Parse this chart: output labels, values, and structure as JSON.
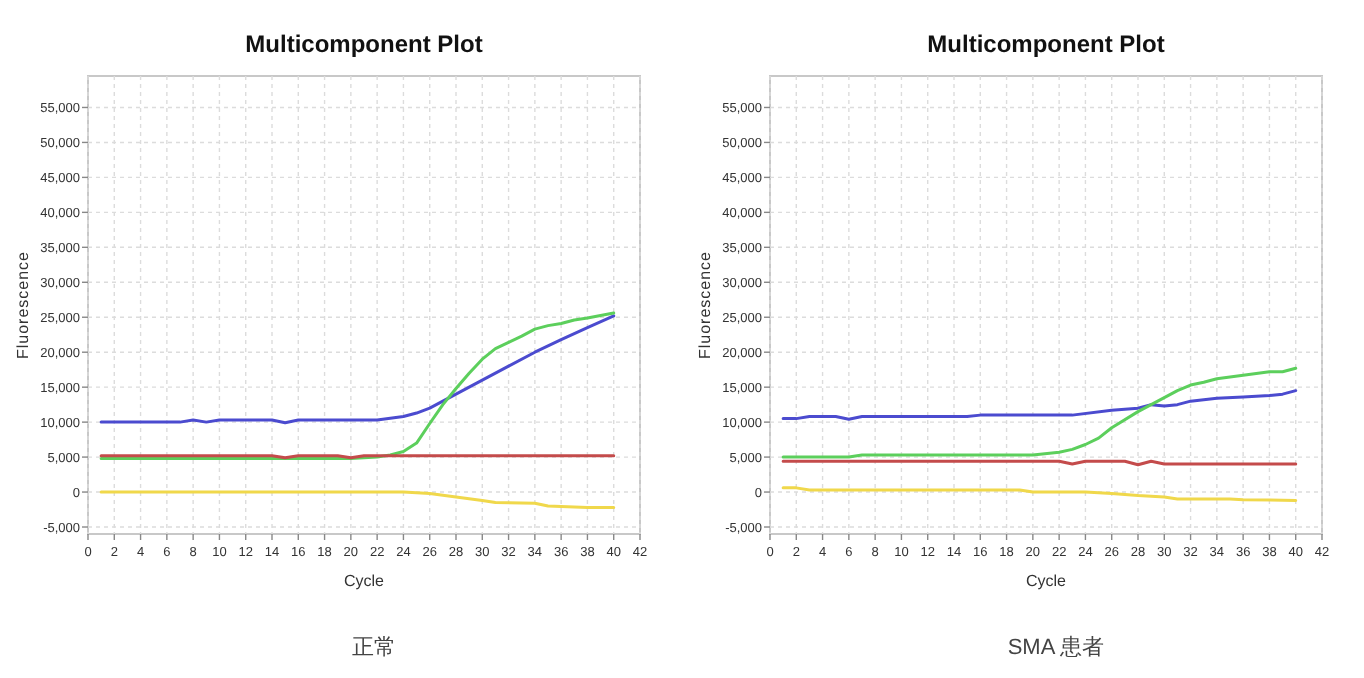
{
  "chart_data": [
    {
      "type": "line",
      "title": "Multicomponent Plot",
      "xlabel": "Cycle",
      "ylabel": "Fluorescence",
      "annotations": [
        "正常"
      ],
      "xlim": [
        0,
        42
      ],
      "ylim": [
        -6000,
        59500
      ],
      "xticks": [
        0,
        2,
        4,
        6,
        8,
        10,
        12,
        14,
        16,
        18,
        20,
        22,
        24,
        26,
        28,
        30,
        32,
        34,
        36,
        38,
        40,
        42
      ],
      "yticks": [
        {
          "value": -5000,
          "label": "-5,000"
        },
        0,
        {
          "value": 5000,
          "label": "5,000"
        },
        {
          "value": 10000,
          "label": "10,000"
        },
        {
          "value": 15000,
          "label": "15,000"
        },
        {
          "value": 20000,
          "label": "20,000"
        },
        {
          "value": 25000,
          "label": "25,000"
        },
        {
          "value": 30000,
          "label": "30,000"
        },
        {
          "value": 35000,
          "label": "35,000"
        },
        {
          "value": 40000,
          "label": "40,000"
        },
        {
          "value": 45000,
          "label": "45,000"
        },
        {
          "value": 50000,
          "label": "50,000"
        },
        {
          "value": 55000,
          "label": "55,000"
        }
      ],
      "grid": true,
      "series": [
        {
          "color": "#4b4bcf",
          "x": [
            1,
            7,
            8,
            9,
            10,
            14,
            15,
            16,
            22,
            24,
            25,
            26,
            28,
            30,
            32,
            34,
            36,
            38,
            40
          ],
          "values": [
            10000,
            10000,
            10300,
            10000,
            10300,
            10300,
            9900,
            10300,
            10300,
            10800,
            11300,
            12000,
            14000,
            16000,
            18000,
            20000,
            21800,
            23500,
            25200
          ]
        },
        {
          "color": "#5ccf5c",
          "x": [
            1,
            20,
            22,
            23,
            24,
            25,
            26,
            27,
            28,
            29,
            30,
            31,
            32,
            33,
            34,
            35,
            36,
            37,
            38,
            40
          ],
          "values": [
            4800,
            4800,
            5000,
            5300,
            5800,
            7000,
            9800,
            12500,
            14800,
            17000,
            19000,
            20500,
            21400,
            22300,
            23300,
            23800,
            24100,
            24600,
            24900,
            25600
          ]
        },
        {
          "color": "#c44b4b",
          "x": [
            1,
            14,
            15,
            16,
            19,
            20,
            21,
            40
          ],
          "values": [
            5200,
            5200,
            4900,
            5200,
            5200,
            4900,
            5200,
            5200
          ]
        },
        {
          "color": "#f0d84b",
          "x": [
            1,
            24,
            26,
            28,
            30,
            31,
            34,
            35,
            38,
            40
          ],
          "values": [
            0,
            0,
            -200,
            -700,
            -1200,
            -1500,
            -1600,
            -2000,
            -2200,
            -2200
          ]
        }
      ]
    },
    {
      "type": "line",
      "title": "Multicomponent Plot",
      "xlabel": "Cycle",
      "ylabel": "Fluorescence",
      "annotations": [
        "SMA 患者"
      ],
      "xlim": [
        0,
        42
      ],
      "ylim": [
        -6000,
        59500
      ],
      "xticks": [
        0,
        2,
        4,
        6,
        8,
        10,
        12,
        14,
        16,
        18,
        20,
        22,
        24,
        26,
        28,
        30,
        32,
        34,
        36,
        38,
        40,
        42
      ],
      "yticks": [
        {
          "value": -5000,
          "label": "-5,000"
        },
        0,
        {
          "value": 5000,
          "label": "5,000"
        },
        {
          "value": 10000,
          "label": "10,000"
        },
        {
          "value": 15000,
          "label": "15,000"
        },
        {
          "value": 20000,
          "label": "20,000"
        },
        {
          "value": 25000,
          "label": "25,000"
        },
        {
          "value": 30000,
          "label": "30,000"
        },
        {
          "value": 35000,
          "label": "35,000"
        },
        {
          "value": 40000,
          "label": "40,000"
        },
        {
          "value": 45000,
          "label": "45,000"
        },
        {
          "value": 50000,
          "label": "50,000"
        },
        {
          "value": 55000,
          "label": "55,000"
        }
      ],
      "grid": true,
      "series": [
        {
          "color": "#4b4bcf",
          "x": [
            1,
            2,
            3,
            5,
            6,
            7,
            15,
            16,
            23,
            26,
            28,
            29,
            30,
            31,
            32,
            34,
            36,
            38,
            39,
            40
          ],
          "values": [
            10500,
            10500,
            10800,
            10800,
            10400,
            10800,
            10800,
            11000,
            11000,
            11700,
            12000,
            12500,
            12300,
            12500,
            13000,
            13400,
            13600,
            13800,
            14000,
            14500
          ]
        },
        {
          "color": "#5ccf5c",
          "x": [
            1,
            6,
            7,
            20,
            22,
            23,
            24,
            25,
            26,
            28,
            30,
            31,
            32,
            33,
            34,
            36,
            38,
            39,
            40
          ],
          "values": [
            5000,
            5000,
            5300,
            5300,
            5700,
            6100,
            6800,
            7700,
            9200,
            11500,
            13500,
            14500,
            15300,
            15700,
            16200,
            16700,
            17200,
            17200,
            17700
          ]
        },
        {
          "color": "#c44b4b",
          "x": [
            1,
            22,
            23,
            24,
            27,
            28,
            29,
            30,
            40
          ],
          "values": [
            4400,
            4400,
            4000,
            4400,
            4400,
            3900,
            4400,
            4000,
            4000
          ]
        },
        {
          "color": "#f0d84b",
          "x": [
            1,
            2,
            3,
            19,
            20,
            24,
            26,
            28,
            30,
            31,
            35,
            36,
            40
          ],
          "values": [
            600,
            600,
            300,
            300,
            0,
            0,
            -200,
            -500,
            -700,
            -1000,
            -1000,
            -1100,
            -1200
          ]
        }
      ]
    }
  ]
}
